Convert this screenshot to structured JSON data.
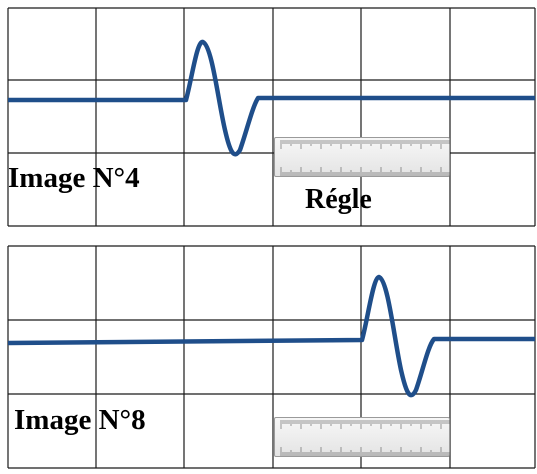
{
  "panels": [
    {
      "label": "Image N°4",
      "caption": "Régle"
    },
    {
      "label": "Image N°8",
      "caption": ""
    }
  ],
  "colors": {
    "grid": "#1a1a1a",
    "signal": "#1f4e8a",
    "ruler_body": "#eeeeee"
  },
  "icons": {
    "ruler": "ruler-icon"
  }
}
